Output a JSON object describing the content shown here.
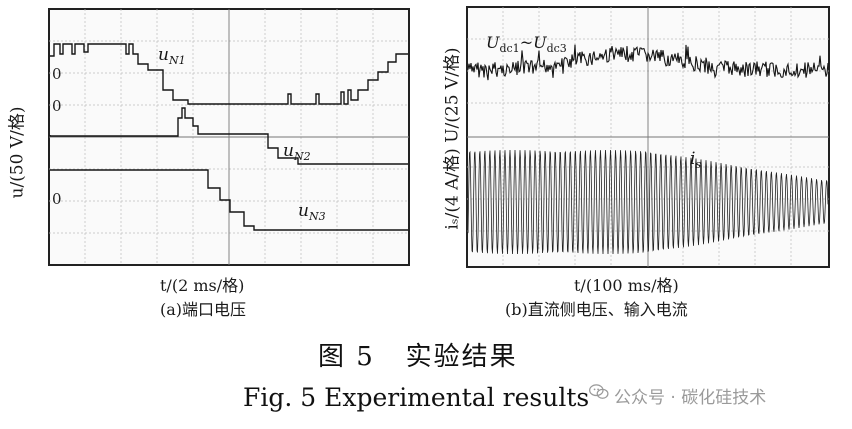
{
  "panel_a": {
    "y_axis_label": "u/(50 V/格)",
    "x_axis_label": "t/(2 ms/格)",
    "caption": "(a)端口电压",
    "zero_marker": "0",
    "traces": {
      "uN1": {
        "label_main": "u",
        "label_sub": "N1"
      },
      "uN2": {
        "label_main": "u",
        "label_sub": "N2"
      },
      "uN3": {
        "label_main": "u",
        "label_sub": "N3"
      }
    }
  },
  "panel_b": {
    "y_axis_label": "iₛ/(4 A/格) U/(25 V/格)",
    "x_axis_label": "t/(100 ms/格)",
    "caption": "(b)直流侧电压、输入电流",
    "trace_voltage": {
      "label_main": "U",
      "sub1": "dc1",
      "tilde": "~",
      "main2": "U",
      "sub2": "dc3"
    },
    "trace_current": {
      "label_main": "i",
      "label_sub": "s"
    }
  },
  "figure": {
    "title_cn": "图 5   实验结果",
    "title_en": "Fig. 5 Experimental results"
  },
  "watermark": {
    "text": "公众号 · 碳化硅技术"
  },
  "colors": {
    "frame": "#222222",
    "grid": "#bdbdbd",
    "trace": "#151515",
    "watermark": "#9a9a9a"
  }
}
